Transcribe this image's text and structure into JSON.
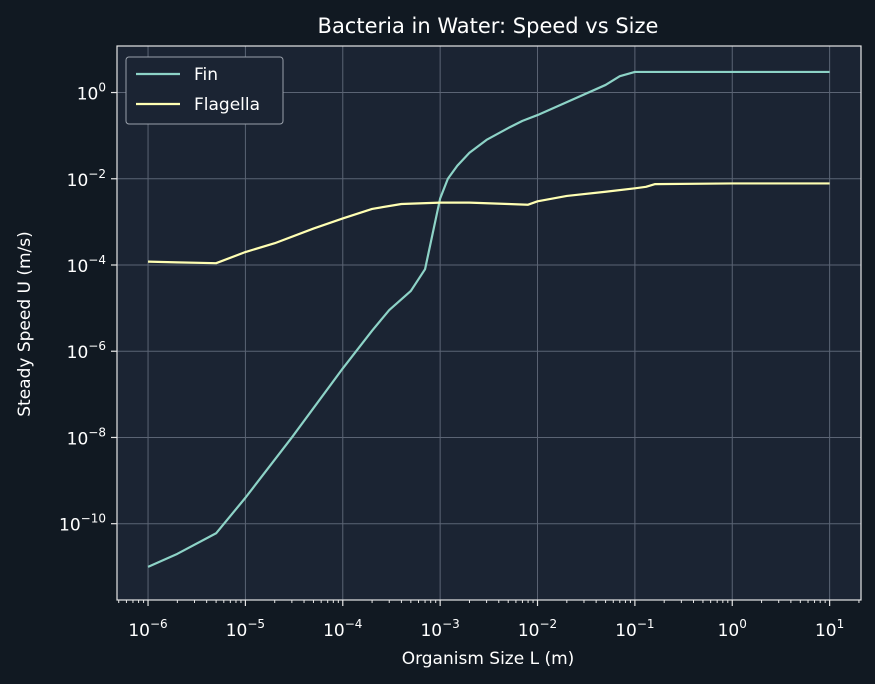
{
  "chart_data": {
    "type": "line",
    "title": "Bacteria in Water: Speed vs Size",
    "xlabel": "Organism Size L (m)",
    "ylabel": "Steady Speed U (m/s)",
    "xscale": "log",
    "yscale": "log",
    "xlim": [
      4.8e-07,
      21.0
    ],
    "ylim": [
      1.7e-12,
      12.0
    ],
    "grid": true,
    "legend_position": "top-left",
    "colors": {
      "figure_background": "#111922",
      "plot_background": "#1b2433",
      "grid": "#5b6474",
      "axes": "#e6e6e6",
      "text": "#ffffff"
    },
    "x_ticks": [
      {
        "base": "10",
        "exp": "−6",
        "value": 1e-06
      },
      {
        "base": "10",
        "exp": "−5",
        "value": 1e-05
      },
      {
        "base": "10",
        "exp": "−4",
        "value": 0.0001
      },
      {
        "base": "10",
        "exp": "−3",
        "value": 0.001
      },
      {
        "base": "10",
        "exp": "−2",
        "value": 0.01
      },
      {
        "base": "10",
        "exp": "−1",
        "value": 0.1
      },
      {
        "base": "10",
        "exp": "0",
        "value": 1
      },
      {
        "base": "10",
        "exp": "1",
        "value": 10
      }
    ],
    "y_ticks": [
      {
        "base": "10",
        "exp": "−10",
        "value": 1e-10
      },
      {
        "base": "10",
        "exp": "−8",
        "value": 1e-08
      },
      {
        "base": "10",
        "exp": "−6",
        "value": 1e-06
      },
      {
        "base": "10",
        "exp": "−4",
        "value": 0.0001
      },
      {
        "base": "10",
        "exp": "−2",
        "value": 0.01
      },
      {
        "base": "10",
        "exp": "0",
        "value": 1
      }
    ],
    "series": [
      {
        "name": "Fin",
        "color": "#8dd3c7",
        "x": [
          1e-06,
          2e-06,
          5e-06,
          1e-05,
          3e-05,
          0.0001,
          0.0002,
          0.0003,
          0.0005,
          0.0007,
          0.001,
          0.0012,
          0.0015,
          0.002,
          0.003,
          0.005,
          0.007,
          0.01,
          0.02,
          0.05,
          0.07,
          0.1,
          1,
          10
        ],
        "y": [
          1e-11,
          2e-11,
          6e-11,
          4e-10,
          1e-08,
          4e-07,
          3e-06,
          9e-06,
          2.5e-05,
          8e-05,
          0.0035,
          0.01,
          0.02,
          0.04,
          0.08,
          0.15,
          0.22,
          0.3,
          0.6,
          1.5,
          2.4,
          3,
          3,
          3
        ]
      },
      {
        "name": "Flagella",
        "color": "#ffffb3",
        "x": [
          1e-06,
          2e-06,
          5e-06,
          1e-05,
          2e-05,
          5e-05,
          0.0001,
          0.0002,
          0.0004,
          0.001,
          0.002,
          0.005,
          0.008,
          0.01,
          0.02,
          0.05,
          0.1,
          0.13,
          0.16,
          1,
          10
        ],
        "y": [
          0.00012,
          0.000115,
          0.00011,
          0.0002,
          0.00032,
          0.0007,
          0.0012,
          0.002,
          0.0026,
          0.0028,
          0.0028,
          0.0026,
          0.0025,
          0.003,
          0.004,
          0.005,
          0.006,
          0.0065,
          0.0075,
          0.0078,
          0.0078
        ]
      }
    ]
  }
}
